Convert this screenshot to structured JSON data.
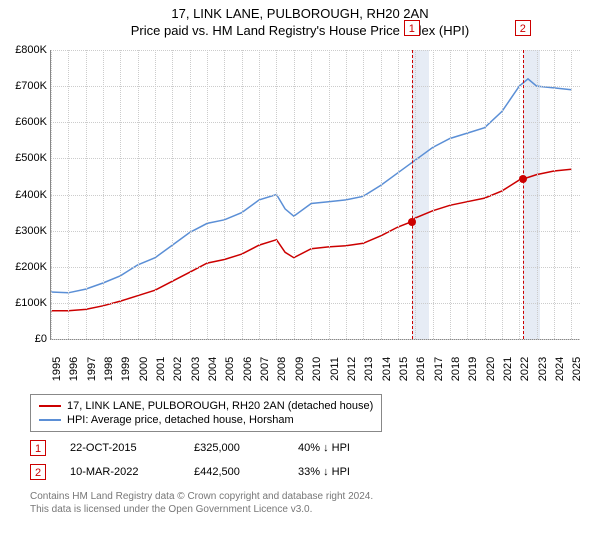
{
  "title_line1": "17, LINK LANE, PULBOROUGH, RH20 2AN",
  "title_line2": "Price paid vs. HM Land Registry's House Price Index (HPI)",
  "chart": {
    "type": "line",
    "background_color": "#ffffff",
    "grid_color": "#cccccc",
    "axis_color": "#888888",
    "label_fontsize": 11,
    "title_fontsize": 13,
    "ylim": [
      0,
      800000
    ],
    "ytick_step": 100000,
    "yticks": [
      "£0",
      "£100K",
      "£200K",
      "£300K",
      "£400K",
      "£500K",
      "£600K",
      "£700K",
      "£800K"
    ],
    "xlim": [
      1995,
      2025.5
    ],
    "xticks": [
      1995,
      1996,
      1997,
      1998,
      1999,
      2000,
      2001,
      2002,
      2003,
      2004,
      2005,
      2006,
      2007,
      2008,
      2009,
      2010,
      2011,
      2012,
      2013,
      2014,
      2015,
      2016,
      2017,
      2018,
      2019,
      2020,
      2021,
      2022,
      2023,
      2024,
      2025
    ],
    "series": [
      {
        "name": "property",
        "label": "17, LINK LANE, PULBOROUGH, RH20 2AN (detached house)",
        "color": "#cc0000",
        "line_width": 1.5,
        "data": [
          [
            1995,
            78000
          ],
          [
            1996,
            78000
          ],
          [
            1997,
            82000
          ],
          [
            1998,
            92000
          ],
          [
            1999,
            105000
          ],
          [
            2000,
            120000
          ],
          [
            2001,
            135000
          ],
          [
            2002,
            160000
          ],
          [
            2003,
            185000
          ],
          [
            2004,
            210000
          ],
          [
            2005,
            220000
          ],
          [
            2006,
            235000
          ],
          [
            2007,
            260000
          ],
          [
            2008,
            275000
          ],
          [
            2008.5,
            240000
          ],
          [
            2009,
            225000
          ],
          [
            2010,
            250000
          ],
          [
            2011,
            255000
          ],
          [
            2012,
            258000
          ],
          [
            2013,
            265000
          ],
          [
            2014,
            285000
          ],
          [
            2015,
            310000
          ],
          [
            2015.8,
            325000
          ],
          [
            2016,
            335000
          ],
          [
            2017,
            355000
          ],
          [
            2018,
            370000
          ],
          [
            2019,
            380000
          ],
          [
            2020,
            390000
          ],
          [
            2021,
            410000
          ],
          [
            2022,
            440000
          ],
          [
            2022.2,
            442500
          ],
          [
            2023,
            455000
          ],
          [
            2024,
            465000
          ],
          [
            2025,
            470000
          ]
        ]
      },
      {
        "name": "hpi",
        "label": "HPI: Average price, detached house, Horsham",
        "color": "#5b8fd6",
        "line_width": 1.5,
        "data": [
          [
            1995,
            130000
          ],
          [
            1996,
            128000
          ],
          [
            1997,
            138000
          ],
          [
            1998,
            155000
          ],
          [
            1999,
            175000
          ],
          [
            2000,
            205000
          ],
          [
            2001,
            225000
          ],
          [
            2002,
            260000
          ],
          [
            2003,
            295000
          ],
          [
            2004,
            320000
          ],
          [
            2005,
            330000
          ],
          [
            2006,
            350000
          ],
          [
            2007,
            385000
          ],
          [
            2008,
            400000
          ],
          [
            2008.5,
            360000
          ],
          [
            2009,
            340000
          ],
          [
            2010,
            375000
          ],
          [
            2011,
            380000
          ],
          [
            2012,
            385000
          ],
          [
            2013,
            395000
          ],
          [
            2014,
            425000
          ],
          [
            2015,
            460000
          ],
          [
            2016,
            495000
          ],
          [
            2017,
            530000
          ],
          [
            2018,
            555000
          ],
          [
            2019,
            570000
          ],
          [
            2020,
            585000
          ],
          [
            2021,
            630000
          ],
          [
            2022,
            700000
          ],
          [
            2022.5,
            720000
          ],
          [
            2023,
            700000
          ],
          [
            2024,
            695000
          ],
          [
            2025,
            690000
          ]
        ]
      }
    ],
    "markers": [
      {
        "num": "1",
        "x_line": 2015.8,
        "band": [
          2015.8,
          2016.8
        ],
        "point_x": 2015.8,
        "point_y": 325000
      },
      {
        "num": "2",
        "x_line": 2022.2,
        "band": [
          2022.2,
          2023.2
        ],
        "point_x": 2022.2,
        "point_y": 442500
      }
    ],
    "marker_line_color": "#cc0000",
    "marker_band_color": "#e6ecf5",
    "point_color": "#cc0000"
  },
  "legend": {
    "items": [
      {
        "color": "#cc0000",
        "label": "17, LINK LANE, PULBOROUGH, RH20 2AN (detached house)"
      },
      {
        "color": "#5b8fd6",
        "label": "HPI: Average price, detached house, Horsham"
      }
    ]
  },
  "transactions": [
    {
      "num": "1",
      "date": "22-OCT-2015",
      "price": "£325,000",
      "pct": "40% ↓ HPI"
    },
    {
      "num": "2",
      "date": "10-MAR-2022",
      "price": "£442,500",
      "pct": "33% ↓ HPI"
    }
  ],
  "footer_line1": "Contains HM Land Registry data © Crown copyright and database right 2024.",
  "footer_line2": "This data is licensed under the Open Government Licence v3.0."
}
